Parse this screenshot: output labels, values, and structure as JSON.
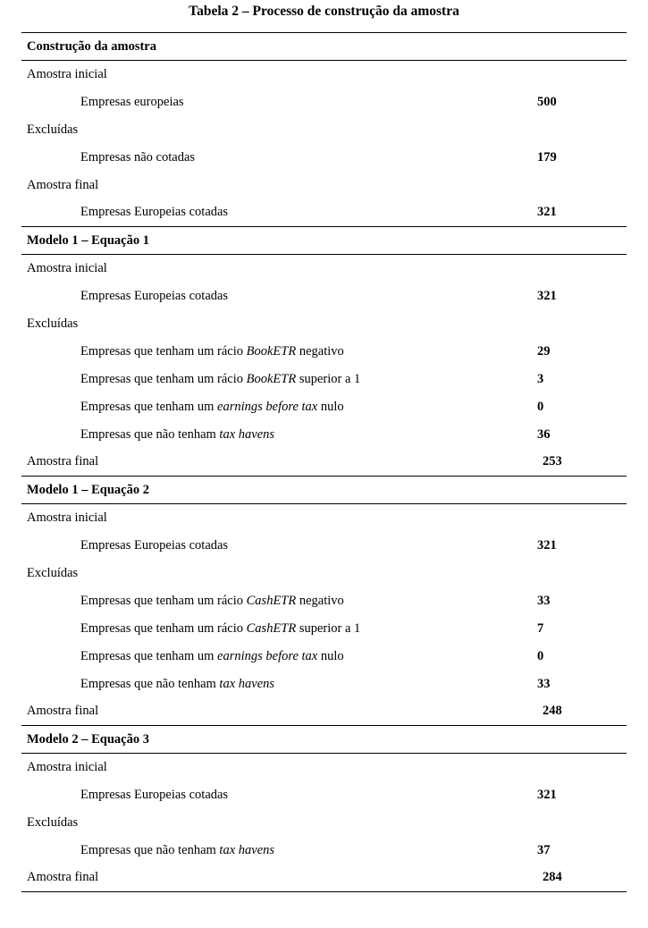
{
  "title": "Tabela 2 – Processo de construção da amostra",
  "sections": [
    {
      "header": "Construção da amostra",
      "groups": [
        {
          "label": "Amostra inicial",
          "items": [
            {
              "text_pre": "Empresas europeias",
              "text_ital": "",
              "text_post": "",
              "value": "500"
            }
          ]
        },
        {
          "label": "Excluídas",
          "items": [
            {
              "text_pre": "Empresas não cotadas",
              "text_ital": "",
              "text_post": "",
              "value": "179"
            }
          ]
        },
        {
          "label": "Amostra final",
          "items": [
            {
              "text_pre": "Empresas Europeias cotadas",
              "text_ital": "",
              "text_post": "",
              "value": "321"
            }
          ],
          "final": true
        }
      ]
    },
    {
      "header": "Modelo 1 – Equação 1",
      "groups": [
        {
          "label": "Amostra inicial",
          "items": [
            {
              "text_pre": "Empresas Europeias cotadas",
              "text_ital": "",
              "text_post": "",
              "value": "321"
            }
          ]
        },
        {
          "label": "Excluídas",
          "items": [
            {
              "text_pre": "Empresas que tenham um rácio ",
              "text_ital": "BookETR",
              "text_post": " negativo",
              "value": "29"
            },
            {
              "text_pre": "Empresas que tenham um rácio ",
              "text_ital": "BookETR",
              "text_post": " superior a 1",
              "value": "3"
            },
            {
              "text_pre": "Empresas que tenham um ",
              "text_ital": "earnings before tax",
              "text_post": " nulo",
              "value": "0"
            },
            {
              "text_pre": "Empresas que não tenham ",
              "text_ital": "tax havens",
              "text_post": "",
              "value": "36"
            }
          ]
        },
        {
          "label": "Amostra final",
          "value": "253",
          "final": true
        }
      ]
    },
    {
      "header": "Modelo 1 – Equação 2",
      "groups": [
        {
          "label": "Amostra inicial",
          "items": [
            {
              "text_pre": "Empresas Europeias cotadas",
              "text_ital": "",
              "text_post": "",
              "value": "321"
            }
          ]
        },
        {
          "label": "Excluídas",
          "items": [
            {
              "text_pre": "Empresas que tenham um rácio ",
              "text_ital": "CashETR",
              "text_post": " negativo",
              "value": "33"
            },
            {
              "text_pre": "Empresas que tenham um rácio ",
              "text_ital": "CashETR",
              "text_post": " superior a 1",
              "value": "7"
            },
            {
              "text_pre": "Empresas que tenham um ",
              "text_ital": "earnings before tax",
              "text_post": " nulo",
              "value": "0"
            },
            {
              "text_pre": "Empresas que não tenham ",
              "text_ital": "tax havens",
              "text_post": "",
              "value": "33"
            }
          ]
        },
        {
          "label": "Amostra final",
          "value": "248",
          "final": true
        }
      ]
    },
    {
      "header": "Modelo 2 – Equação 3",
      "groups": [
        {
          "label": "Amostra inicial",
          "items": [
            {
              "text_pre": "Empresas Europeias cotadas",
              "text_ital": "",
              "text_post": "",
              "value": "321"
            }
          ]
        },
        {
          "label": "Excluídas",
          "items": [
            {
              "text_pre": "Empresas que não tenham ",
              "text_ital": "tax havens",
              "text_post": "",
              "value": "37"
            }
          ]
        },
        {
          "label": "Amostra final",
          "value": "284",
          "final": true
        }
      ]
    }
  ]
}
